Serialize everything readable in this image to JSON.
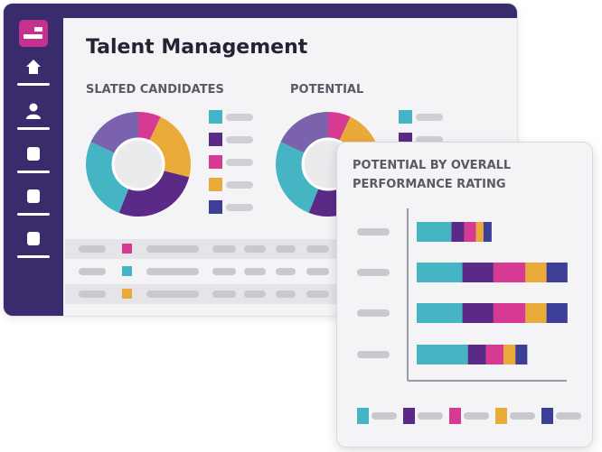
{
  "app": {
    "title": "Talent Management"
  },
  "sidebar": {
    "logo_icon": "dashboard-logo-icon",
    "items": [
      {
        "icon": "home-icon",
        "active": true
      },
      {
        "icon": "user-icon",
        "active": false
      },
      {
        "icon": "box-icon",
        "active": false
      },
      {
        "icon": "box-icon",
        "active": false
      },
      {
        "icon": "box-icon",
        "active": false
      }
    ]
  },
  "colors": {
    "teal": "#45b5c4",
    "purple": "#5b2a86",
    "magenta": "#d63a93",
    "yellow": "#eaaa3a",
    "navy": "#3d3f96",
    "violet": "#7a62ad",
    "sidebar": "#3a2b6c"
  },
  "sections": {
    "slated": {
      "title": "SLATED CANDIDATES",
      "segments": [
        {
          "color": "#d63a93",
          "value": 7
        },
        {
          "color": "#eaaa3a",
          "value": 22
        },
        {
          "color": "#5b2a86",
          "value": 27
        },
        {
          "color": "#45b5c4",
          "value": 26
        },
        {
          "color": "#7a62ad",
          "value": 18
        }
      ],
      "legend": [
        "#45b5c4",
        "#5b2a86",
        "#d63a93",
        "#eaaa3a",
        "#3d3f96"
      ]
    },
    "potential": {
      "title": "POTENTIAL",
      "segments": [
        {
          "color": "#d63a93",
          "value": 7
        },
        {
          "color": "#eaaa3a",
          "value": 22
        },
        {
          "color": "#5b2a86",
          "value": 27
        },
        {
          "color": "#45b5c4",
          "value": 26
        },
        {
          "color": "#7a62ad",
          "value": 18
        }
      ],
      "legend": [
        "#45b5c4",
        "#5b2a86",
        "#d63a93",
        "#eaaa3a",
        "#3d3f96"
      ]
    }
  },
  "table": {
    "rows": [
      {
        "swatch": "#d63a93",
        "alt": true
      },
      {
        "swatch": "#45b5c4",
        "alt": false
      },
      {
        "swatch": "#eaaa3a",
        "alt": true
      }
    ]
  },
  "overlay": {
    "title": "POTENTIAL BY OVERALL PERFORMANCE RATING",
    "chart_data": {
      "type": "bar",
      "stacked": true,
      "orientation": "horizontal",
      "categories": [
        "",
        "",
        "",
        ""
      ],
      "series": [
        {
          "color": "#45b5c4",
          "values": [
            38,
            50,
            50,
            56
          ]
        },
        {
          "color": "#5b2a86",
          "values": [
            14,
            34,
            34,
            20
          ]
        },
        {
          "color": "#d63a93",
          "values": [
            13,
            35,
            35,
            19
          ]
        },
        {
          "color": "#eaaa3a",
          "values": [
            8,
            23,
            23,
            13
          ]
        },
        {
          "color": "#3d3f96",
          "values": [
            9,
            23,
            23,
            13
          ]
        }
      ],
      "xlim": [
        0,
        180
      ],
      "grid": false,
      "legend_position": "bottom"
    }
  }
}
